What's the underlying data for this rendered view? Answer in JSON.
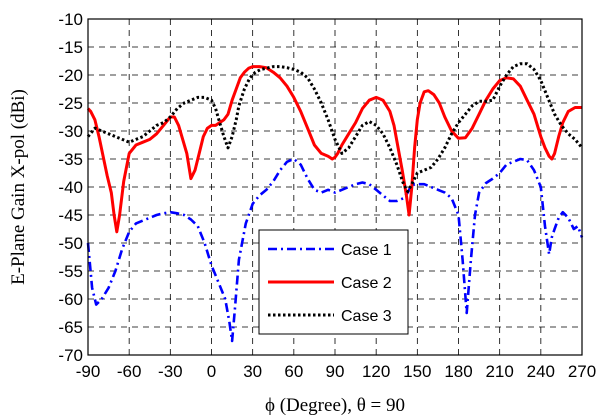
{
  "chart_data": {
    "type": "line",
    "xlabel": "ϕ (Degree), θ = 90",
    "ylabel": "E-Plane Gain X-pol (dBi)",
    "xlim": [
      -90,
      270
    ],
    "ylim": [
      -70,
      -10
    ],
    "xticks": [
      "-90",
      "-60",
      "-30",
      "0",
      "30",
      "60",
      "90",
      "120",
      "150",
      "180",
      "210",
      "240",
      "270"
    ],
    "yticks": [
      "-10",
      "-15",
      "-20",
      "-25",
      "-30",
      "-35",
      "-40",
      "-45",
      "-50",
      "-55",
      "-60",
      "-65",
      "-70"
    ],
    "grid": true,
    "legend_position": "bottom-center",
    "series": [
      {
        "name": "Case 1",
        "color": "#0000ff",
        "style": "dash-dot",
        "x": [
          -90,
          -87,
          -84,
          -80,
          -75,
          -70,
          -65,
          -60,
          -55,
          -50,
          -45,
          -40,
          -35,
          -30,
          -25,
          -20,
          -15,
          -10,
          -5,
          0,
          5,
          10,
          13,
          15,
          17,
          20,
          25,
          30,
          35,
          40,
          45,
          50,
          55,
          60,
          65,
          70,
          75,
          80,
          85,
          90,
          95,
          100,
          105,
          110,
          115,
          120,
          125,
          130,
          135,
          140,
          143,
          145,
          148,
          150,
          155,
          160,
          165,
          170,
          175,
          180,
          183,
          186,
          189,
          192,
          195,
          200,
          205,
          210,
          215,
          220,
          225,
          230,
          235,
          240,
          243,
          246,
          248,
          250,
          253,
          256,
          260,
          264,
          267,
          270
        ],
        "y": [
          -50,
          -58,
          -61,
          -60,
          -58,
          -55,
          -51,
          -48,
          -46.5,
          -46,
          -45.5,
          -45,
          -44.7,
          -44.5,
          -44.7,
          -45,
          -45.8,
          -47,
          -50,
          -54,
          -57,
          -60,
          -64,
          -67.5,
          -62,
          -53,
          -46.5,
          -43,
          -41.5,
          -40.5,
          -39,
          -37,
          -35.5,
          -35,
          -36,
          -38.5,
          -40.5,
          -41,
          -40.5,
          -41,
          -40.5,
          -40,
          -39.5,
          -39.2,
          -39.5,
          -40.5,
          -41.5,
          -42.5,
          -42.5,
          -42,
          -41,
          -40,
          -39.5,
          -39.5,
          -39.5,
          -40,
          -40.5,
          -41,
          -42,
          -45,
          -53,
          -62.5,
          -53,
          -45,
          -41,
          -39.3,
          -38.5,
          -37.5,
          -36,
          -35.5,
          -35,
          -35.2,
          -37,
          -40,
          -47,
          -52,
          -49,
          -47.5,
          -45.5,
          -44.5,
          -45.5,
          -47.5,
          -47,
          -49
        ]
      },
      {
        "name": "Case 2",
        "color": "#ff0000",
        "style": "solid",
        "x": [
          -90,
          -88,
          -85,
          -82,
          -79,
          -76,
          -73,
          -71,
          -69,
          -67,
          -64,
          -60,
          -55,
          -50,
          -45,
          -40,
          -35,
          -30,
          -27,
          -24,
          -21,
          -18,
          -15,
          -12,
          -9,
          -6,
          -3,
          0,
          3,
          6,
          9,
          12,
          15,
          18,
          21,
          24,
          27,
          30,
          35,
          40,
          45,
          50,
          55,
          60,
          65,
          70,
          75,
          80,
          85,
          88,
          90,
          92,
          95,
          100,
          105,
          110,
          115,
          120,
          125,
          130,
          133,
          136,
          139,
          142,
          144,
          146,
          148,
          150,
          152,
          155,
          158,
          162,
          166,
          170,
          175,
          180,
          185,
          190,
          195,
          200,
          205,
          210,
          215,
          220,
          225,
          230,
          235,
          240,
          243,
          246,
          248,
          250,
          253,
          256,
          260,
          265,
          270
        ],
        "y": [
          -26,
          -26.5,
          -28,
          -31,
          -34.5,
          -38,
          -41,
          -45,
          -48,
          -45,
          -39,
          -34,
          -32.5,
          -32,
          -31.5,
          -30.5,
          -29,
          -27.5,
          -27.5,
          -29,
          -31.5,
          -34,
          -38.5,
          -37,
          -34,
          -31,
          -29.5,
          -29,
          -29,
          -28.5,
          -28,
          -27,
          -24.5,
          -22.5,
          -20.5,
          -19.5,
          -18.8,
          -18.5,
          -18.5,
          -18.7,
          -19.5,
          -20.5,
          -22,
          -24,
          -26.5,
          -29.5,
          -32.5,
          -34,
          -34.5,
          -35,
          -34.7,
          -34,
          -32.5,
          -30.5,
          -28.5,
          -26,
          -24.5,
          -24,
          -24.5,
          -26.5,
          -29,
          -33,
          -37,
          -41.5,
          -45,
          -40,
          -33,
          -28,
          -25,
          -23,
          -22.8,
          -23.5,
          -25,
          -27.5,
          -30,
          -31.3,
          -31.2,
          -29.5,
          -27,
          -24.5,
          -22.5,
          -21,
          -20.5,
          -20.7,
          -22,
          -24.5,
          -27,
          -31,
          -33,
          -34.5,
          -35,
          -34,
          -31,
          -28.5,
          -26.5,
          -25.8,
          -25.8
        ]
      },
      {
        "name": "Case 3",
        "color": "#000000",
        "style": "dotted",
        "x": [
          -90,
          -85,
          -80,
          -75,
          -70,
          -65,
          -60,
          -55,
          -50,
          -45,
          -40,
          -35,
          -30,
          -25,
          -20,
          -15,
          -10,
          -5,
          0,
          3,
          6,
          9,
          12,
          15,
          18,
          20,
          24,
          28,
          32,
          36,
          40,
          45,
          50,
          55,
          60,
          65,
          70,
          75,
          80,
          85,
          90,
          95,
          100,
          105,
          110,
          115,
          120,
          125,
          130,
          135,
          140,
          143,
          146,
          150,
          155,
          160,
          165,
          170,
          175,
          180,
          185,
          190,
          195,
          200,
          205,
          210,
          215,
          220,
          225,
          230,
          235,
          240,
          245,
          250,
          255,
          260,
          265,
          270
        ],
        "y": [
          -31,
          -29.5,
          -30,
          -30.5,
          -31,
          -31.5,
          -32,
          -31.5,
          -31,
          -30,
          -29,
          -28.5,
          -27.5,
          -26,
          -25,
          -24.5,
          -24,
          -24,
          -24.5,
          -26,
          -28.5,
          -31,
          -33,
          -31,
          -28,
          -25.5,
          -22.5,
          -20.5,
          -19.5,
          -19,
          -18.8,
          -18.5,
          -18.5,
          -18.7,
          -19,
          -19.5,
          -20.5,
          -22.5,
          -25,
          -28,
          -31.5,
          -34,
          -33,
          -31,
          -29,
          -28.3,
          -29,
          -30.5,
          -33,
          -36,
          -39.5,
          -40.8,
          -39.5,
          -37.5,
          -37,
          -36.5,
          -35,
          -33,
          -30.5,
          -28.5,
          -27,
          -25.5,
          -24.7,
          -24.7,
          -24.5,
          -22,
          -20,
          -18.5,
          -18,
          -18,
          -19,
          -21,
          -24,
          -27,
          -29,
          -30.5,
          -31.5,
          -33
        ]
      }
    ]
  }
}
